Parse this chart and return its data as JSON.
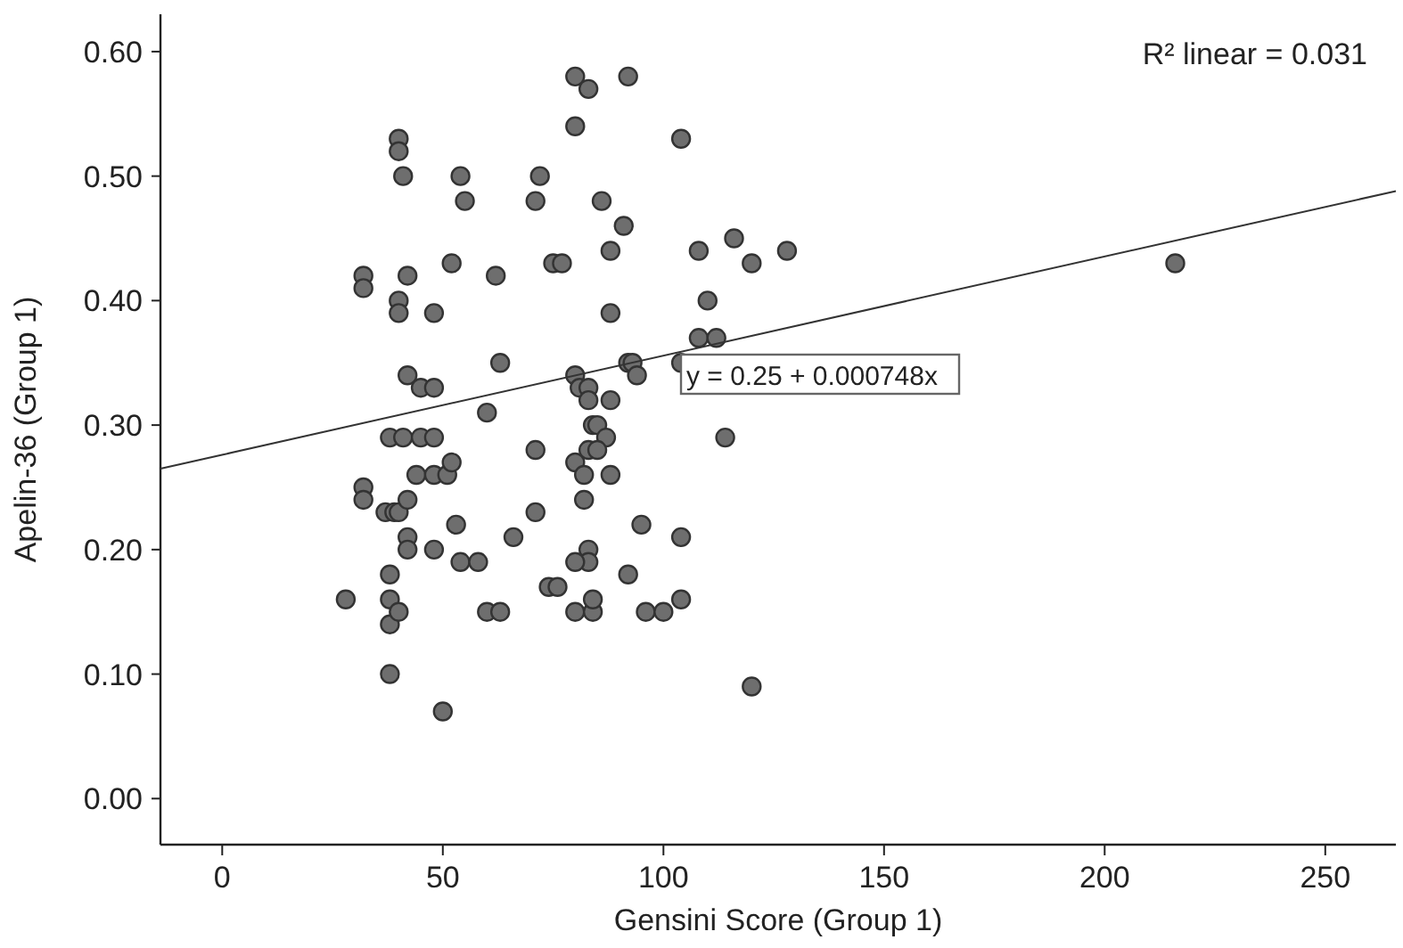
{
  "chart_data": {
    "type": "scatter",
    "xlabel": "Gensini Score (Group 1)",
    "ylabel": "Apelin-36 (Group 1)",
    "xlim": [
      -14,
      266
    ],
    "ylim": [
      -0.037,
      0.63
    ],
    "xticks": [
      0,
      50,
      100,
      150,
      200,
      250
    ],
    "yticks": [
      {
        "value": 0,
        "label": "0.00"
      },
      {
        "value": 0.1,
        "label": "0.10"
      },
      {
        "value": 0.2,
        "label": "0.20"
      },
      {
        "value": 0.3,
        "label": "0.30"
      },
      {
        "value": 0.4,
        "label": "0.40"
      },
      {
        "value": 0.5,
        "label": "0.50"
      },
      {
        "value": 0.6,
        "label": "0.60"
      }
    ],
    "grid": false,
    "annotations": [
      "R² linear = 0.031",
      "y = 0.25 + 0.000748x"
    ],
    "series": [
      {
        "marker": "circle",
        "color": "#6e6e6e",
        "x": [
          40,
          40,
          41,
          32,
          32,
          40,
          40,
          42,
          42,
          45,
          48,
          48,
          52,
          54,
          55,
          62,
          63,
          60,
          38,
          41,
          45,
          48,
          32,
          32,
          37,
          39,
          40,
          44,
          48,
          51,
          52,
          42,
          42,
          42,
          48,
          53,
          54,
          58,
          38,
          38,
          38,
          40,
          28,
          38,
          50,
          60,
          63,
          66,
          71,
          72,
          75,
          77,
          71,
          71,
          74,
          76,
          80,
          83,
          92,
          80,
          104,
          86,
          88,
          91,
          80,
          81,
          83,
          83,
          88,
          92,
          93,
          94,
          88,
          84,
          85,
          87,
          80,
          82,
          83,
          85,
          88,
          82,
          83,
          83,
          80,
          80,
          84,
          84,
          92,
          95,
          96,
          100,
          104,
          104,
          108,
          108,
          110,
          112,
          116,
          120,
          128,
          114,
          120,
          216,
          104
        ],
        "values": [
          0.53,
          0.52,
          0.5,
          0.42,
          0.41,
          0.4,
          0.39,
          0.42,
          0.34,
          0.33,
          0.39,
          0.33,
          0.43,
          0.5,
          0.48,
          0.42,
          0.35,
          0.31,
          0.29,
          0.29,
          0.29,
          0.29,
          0.25,
          0.24,
          0.23,
          0.23,
          0.23,
          0.26,
          0.26,
          0.26,
          0.27,
          0.24,
          0.21,
          0.2,
          0.2,
          0.22,
          0.19,
          0.19,
          0.18,
          0.16,
          0.14,
          0.15,
          0.16,
          0.1,
          0.07,
          0.15,
          0.15,
          0.21,
          0.48,
          0.5,
          0.43,
          0.43,
          0.28,
          0.23,
          0.17,
          0.17,
          0.58,
          0.57,
          0.58,
          0.54,
          0.53,
          0.48,
          0.44,
          0.46,
          0.34,
          0.33,
          0.33,
          0.32,
          0.39,
          0.35,
          0.35,
          0.34,
          0.32,
          0.3,
          0.3,
          0.29,
          0.27,
          0.26,
          0.28,
          0.28,
          0.26,
          0.24,
          0.2,
          0.19,
          0.19,
          0.15,
          0.15,
          0.16,
          0.18,
          0.22,
          0.15,
          0.15,
          0.21,
          0.16,
          0.44,
          0.37,
          0.4,
          0.37,
          0.45,
          0.43,
          0.44,
          0.29,
          0.09,
          0.43,
          0.35
        ]
      },
      {
        "type": "line",
        "color": "#333333",
        "x": [
          -14,
          266
        ],
        "values": [
          0.265,
          0.488
        ]
      }
    ]
  }
}
